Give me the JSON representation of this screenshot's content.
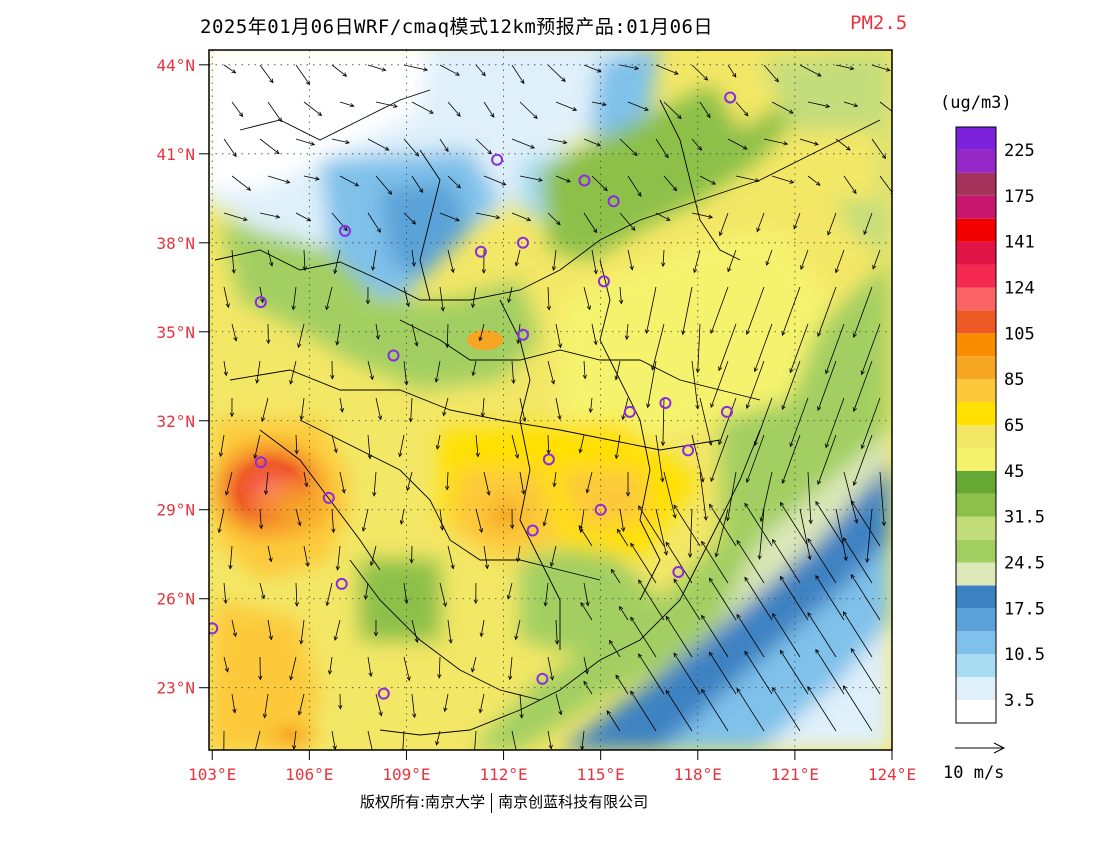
{
  "title": {
    "main": "2025年01月06日WRF/cmaq模式12km预报产品:01月06日",
    "variable": "PM2.5"
  },
  "axes": {
    "lat_labels": [
      "44°N",
      "41°N",
      "38°N",
      "35°N",
      "32°N",
      "29°N",
      "26°N",
      "23°N"
    ],
    "lat_values": [
      44,
      41,
      38,
      35,
      32,
      29,
      26,
      23
    ],
    "lon_labels": [
      "103°E",
      "106°E",
      "109°E",
      "112°E",
      "115°E",
      "118°E",
      "121°E",
      "124°E"
    ],
    "lon_values": [
      103,
      106,
      109,
      112,
      115,
      118,
      121,
      124
    ],
    "lat_range": [
      20.9,
      44.5
    ],
    "lon_range": [
      102.9,
      124.0
    ]
  },
  "colorbar": {
    "unit": "(ug/m3)",
    "colors": [
      "#ffffff",
      "#dff0fa",
      "#a9dcf3",
      "#7fc1ea",
      "#5aa2d8",
      "#3c82c2",
      "#dde8b8",
      "#a3cf62",
      "#c4dd7b",
      "#8cc04a",
      "#66a834",
      "#f5f36e",
      "#f3e766",
      "#ffe000",
      "#fdc93a",
      "#f6a623",
      "#f98d00",
      "#ee5a26",
      "#fa6464",
      "#f52850",
      "#e11446",
      "#f20000",
      "#c8166e",
      "#a5325a",
      "#9628c8",
      "#7d22dc"
    ],
    "labels": [
      "3.5",
      "10.5",
      "17.5",
      "24.5",
      "31.5",
      "45",
      "65",
      "85",
      "105",
      "124",
      "141",
      "175",
      "225"
    ]
  },
  "wind_legend": {
    "label": "10 m/s"
  },
  "cities": [
    {
      "lon": 119.0,
      "lat": 42.9
    },
    {
      "lon": 111.8,
      "lat": 40.8
    },
    {
      "lon": 114.5,
      "lat": 40.1
    },
    {
      "lon": 115.4,
      "lat": 39.4
    },
    {
      "lon": 112.6,
      "lat": 38.0
    },
    {
      "lon": 111.3,
      "lat": 37.7
    },
    {
      "lon": 107.1,
      "lat": 38.4
    },
    {
      "lon": 115.1,
      "lat": 36.7
    },
    {
      "lon": 104.5,
      "lat": 36.0
    },
    {
      "lon": 112.6,
      "lat": 34.9
    },
    {
      "lon": 108.6,
      "lat": 34.2
    },
    {
      "lon": 117.0,
      "lat": 32.6
    },
    {
      "lon": 118.9,
      "lat": 32.3
    },
    {
      "lon": 115.9,
      "lat": 32.3
    },
    {
      "lon": 117.7,
      "lat": 31.0
    },
    {
      "lon": 104.5,
      "lat": 30.6
    },
    {
      "lon": 113.4,
      "lat": 30.7
    },
    {
      "lon": 106.6,
      "lat": 29.4
    },
    {
      "lon": 115.0,
      "lat": 29.0
    },
    {
      "lon": 112.9,
      "lat": 28.3
    },
    {
      "lon": 117.4,
      "lat": 26.9
    },
    {
      "lon": 107.0,
      "lat": 26.5
    },
    {
      "lon": 103.0,
      "lat": 25.0
    },
    {
      "lon": 113.2,
      "lat": 23.3
    },
    {
      "lon": 108.3,
      "lat": 22.8
    }
  ],
  "footer": {
    "left": "版权所有:南京大学",
    "right": "南京创蓝科技有限公司"
  }
}
